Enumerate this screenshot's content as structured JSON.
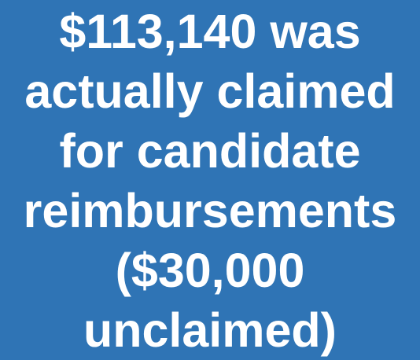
{
  "slide": {
    "lines": [
      "$113,140 was",
      "actually claimed",
      "for candidate",
      "reimbursements",
      "($30,000",
      "unclaimed)"
    ]
  }
}
